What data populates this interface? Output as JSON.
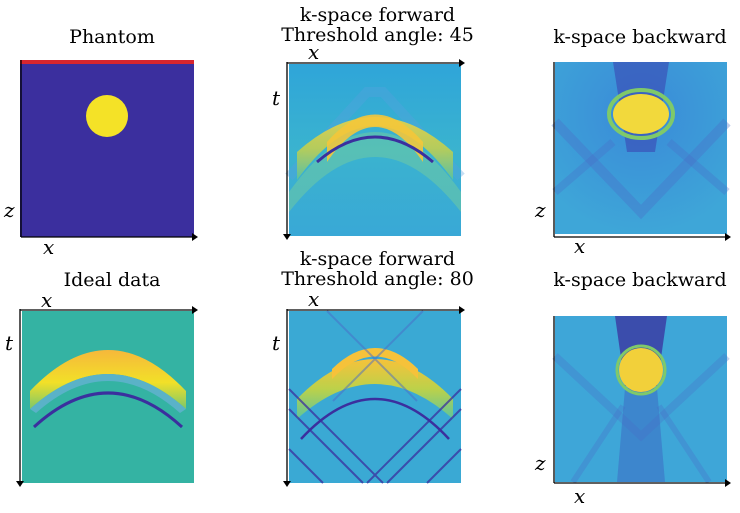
{
  "figure": {
    "panels": [
      {
        "id": "phantom",
        "title": "Phantom",
        "subtitle": "",
        "xlabel": "x",
        "ylabel": "z"
      },
      {
        "id": "fwd45",
        "title": "k-space forward",
        "subtitle": "Threshold angle: 45",
        "xlabel": "x",
        "ylabel": "t"
      },
      {
        "id": "bwd45",
        "title": "k-space backward",
        "subtitle": "",
        "xlabel": "x",
        "ylabel": "z"
      },
      {
        "id": "ideal",
        "title": "Ideal data",
        "subtitle": "",
        "xlabel": "x",
        "ylabel": "t"
      },
      {
        "id": "fwd80",
        "title": "k-space forward",
        "subtitle": "Threshold angle: 80",
        "xlabel": "x",
        "ylabel": "t"
      },
      {
        "id": "bwd80",
        "title": "k-space backward",
        "subtitle": "",
        "xlabel": "x",
        "ylabel": "z"
      }
    ]
  },
  "colors": {
    "deep_blue": "#3b2f9e",
    "teal_bg": "#34b3a3",
    "light_blue_bg": "#3da9d4",
    "yellow": "#f4e227",
    "orange_yellow": "#f6c23a",
    "green": "#7fc96a",
    "red_bar": "#d8262f"
  }
}
